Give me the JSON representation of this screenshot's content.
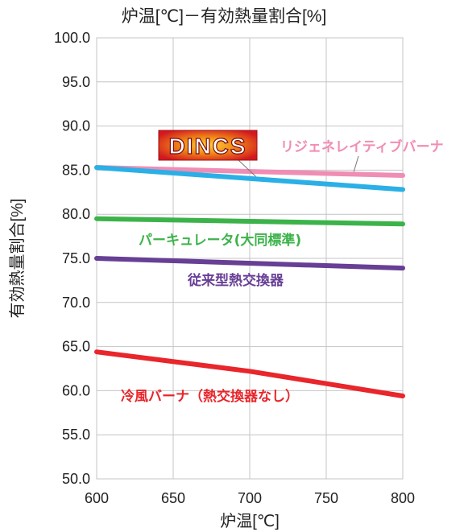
{
  "chart_data": {
    "type": "line",
    "title": "炉温[℃]－有効熱量割合[%]",
    "xlabel": "炉温[℃]",
    "ylabel": "有効熱量割合[%]",
    "xlim": [
      600,
      800
    ],
    "ylim": [
      50,
      100
    ],
    "x_ticks": [
      "600",
      "650",
      "700",
      "750",
      "800"
    ],
    "y_ticks": [
      "100.0",
      "95.0",
      "90.0",
      "85.0",
      "80.0",
      "75.0",
      "70.0",
      "65.0",
      "60.0",
      "55.0",
      "50.0"
    ],
    "grid": true,
    "logo_text": "DINCS",
    "series": [
      {
        "name": "リジェネレイティブバーナ",
        "color": "#f08db4",
        "x": [
          600,
          800
        ],
        "y": [
          85.3,
          84.4
        ]
      },
      {
        "name": "DINCS",
        "color": "#2ab0e6",
        "x": [
          600,
          800
        ],
        "y": [
          85.3,
          82.8
        ]
      },
      {
        "name": "パーキュレータ(大同標準)",
        "color": "#3cb34a",
        "x": [
          600,
          800
        ],
        "y": [
          79.5,
          78.9
        ]
      },
      {
        "name": "従来型熱交換器",
        "color": "#673f95",
        "x": [
          600,
          800
        ],
        "y": [
          75.0,
          73.9
        ]
      },
      {
        "name": "冷風バーナ（熱交換器なし）",
        "color": "#e8262b",
        "x": [
          600,
          700,
          800
        ],
        "y": [
          64.4,
          62.2,
          59.4
        ]
      }
    ],
    "labels": [
      {
        "series": "リジェネレイティブバーナ",
        "text": "リジェネレイティブバーナ",
        "color": "#f08db4"
      },
      {
        "series": "パーキュレータ(大同標準)",
        "text": "パーキュレータ(大同標準)",
        "color": "#3cb34a"
      },
      {
        "series": "従来型熱交換器",
        "text": "従来型熱交換器",
        "color": "#673f95"
      },
      {
        "series": "冷風バーナ（熱交換器なし）",
        "text": "冷風バーナ（熱交換器なし）",
        "color": "#e8262b"
      }
    ]
  }
}
